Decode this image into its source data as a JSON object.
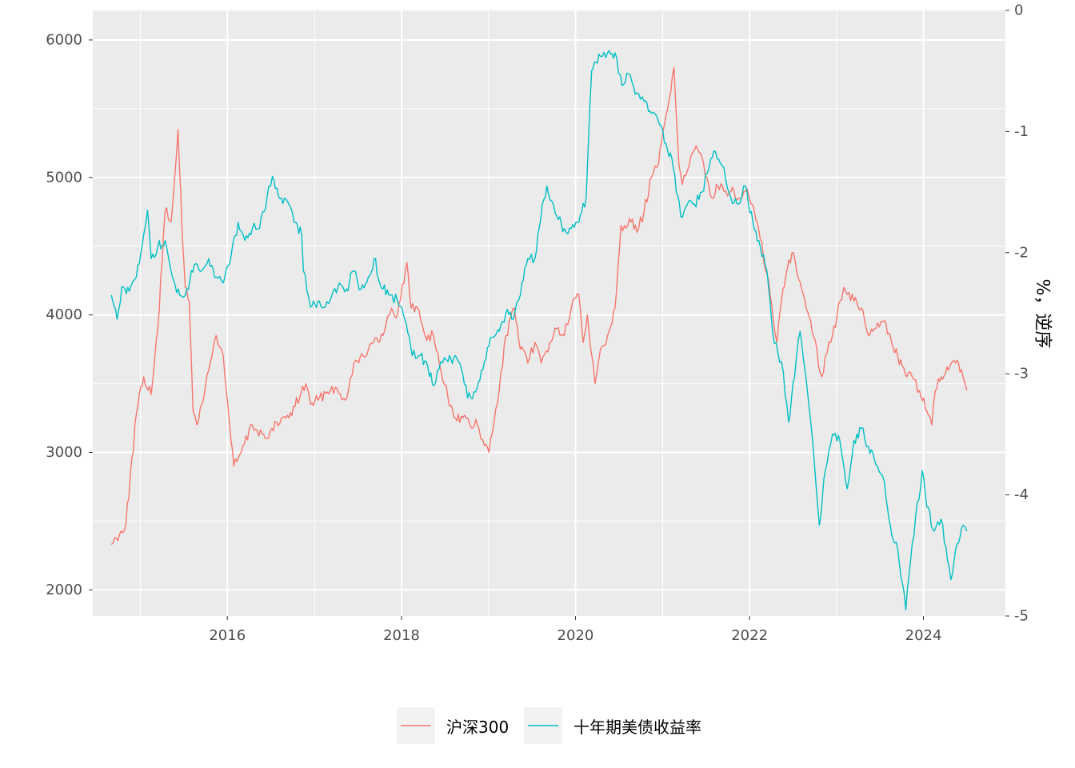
{
  "chart_data": {
    "type": "line",
    "title": "",
    "xlabel": "",
    "ylabel_left": "",
    "ylabel_right": "%，逆序",
    "x_ticks": [
      "2016",
      "2018",
      "2020",
      "2022",
      "2024"
    ],
    "y_left_ticks": [
      "2000",
      "3000",
      "4000",
      "5000",
      "6000"
    ],
    "y_right_ticks": [
      "0",
      "-1",
      "-2",
      "-3",
      "-4",
      "-5"
    ],
    "x_range": [
      "2014-06-15",
      "2024-12-10"
    ],
    "y_left_range": [
      1810,
      6215
    ],
    "y_right_range": [
      -5,
      0
    ],
    "grid": true,
    "legend_position": "bottom",
    "series": [
      {
        "name": "沪深300",
        "color": "#F8766D",
        "axis": "left",
        "x": [
          "2014-09-01",
          "2014-11-01",
          "2014-12-15",
          "2015-01-15",
          "2015-02-15",
          "2015-03-15",
          "2015-04-15",
          "2015-05-10",
          "2015-06-08",
          "2015-06-25",
          "2015-07-08",
          "2015-07-25",
          "2015-08-10",
          "2015-08-26",
          "2015-09-15",
          "2015-10-15",
          "2015-11-15",
          "2015-12-15",
          "2016-01-10",
          "2016-01-28",
          "2016-02-28",
          "2016-04-15",
          "2016-06-15",
          "2016-08-15",
          "2016-09-15",
          "2016-11-25",
          "2016-12-15",
          "2017-01-15",
          "2017-03-15",
          "2017-05-10",
          "2017-06-15",
          "2017-08-15",
          "2017-10-15",
          "2017-11-20",
          "2017-12-15",
          "2018-01-24",
          "2018-02-10",
          "2018-03-10",
          "2018-04-10",
          "2018-05-15",
          "2018-06-15",
          "2018-07-15",
          "2018-08-15",
          "2018-09-15",
          "2018-10-15",
          "2018-11-15",
          "2018-12-15",
          "2019-01-03",
          "2019-02-15",
          "2019-03-15",
          "2019-04-20",
          "2019-05-15",
          "2019-06-15",
          "2019-07-15",
          "2019-08-10",
          "2019-09-15",
          "2019-10-15",
          "2019-11-15",
          "2019-12-15",
          "2020-01-15",
          "2020-02-03",
          "2020-02-20",
          "2020-03-23",
          "2020-04-15",
          "2020-05-15",
          "2020-06-15",
          "2020-07-10",
          "2020-07-25",
          "2020-08-15",
          "2020-09-15",
          "2020-10-15",
          "2020-11-15",
          "2020-12-15",
          "2021-01-15",
          "2021-02-18",
          "2021-03-10",
          "2021-03-25",
          "2021-04-15",
          "2021-05-15",
          "2021-06-15",
          "2021-07-28",
          "2021-08-15",
          "2021-09-15",
          "2021-10-15",
          "2021-11-15",
          "2021-12-15",
          "2022-01-15",
          "2022-02-15",
          "2022-03-15",
          "2022-04-26",
          "2022-05-15",
          "2022-06-15",
          "2022-07-05",
          "2022-08-15",
          "2022-09-15",
          "2022-10-31",
          "2022-11-15",
          "2022-12-15",
          "2023-01-15",
          "2023-01-31",
          "2023-02-15",
          "2023-03-15",
          "2023-04-15",
          "2023-05-15",
          "2023-06-15",
          "2023-07-15",
          "2023-08-15",
          "2023-09-15",
          "2023-10-23",
          "2023-11-15",
          "2023-12-15",
          "2024-01-15",
          "2024-02-05",
          "2024-02-20",
          "2024-03-15",
          "2024-04-15",
          "2024-05-15",
          "2024-06-15",
          "2024-07-01"
        ],
        "values": [
          2330,
          2480,
          3280,
          3550,
          3420,
          3900,
          4760,
          4680,
          5350,
          4600,
          4200,
          4100,
          3300,
          3200,
          3350,
          3600,
          3850,
          3700,
          3200,
          2900,
          3000,
          3200,
          3100,
          3250,
          3250,
          3500,
          3350,
          3380,
          3480,
          3380,
          3650,
          3750,
          3850,
          4050,
          4000,
          4380,
          4050,
          4050,
          3850,
          3850,
          3600,
          3400,
          3250,
          3250,
          3200,
          3200,
          3050,
          3000,
          3450,
          3850,
          4050,
          3750,
          3650,
          3800,
          3650,
          3800,
          3900,
          3850,
          4050,
          4150,
          3800,
          4000,
          3500,
          3750,
          3850,
          4050,
          4650,
          4650,
          4700,
          4600,
          4750,
          5000,
          5100,
          5450,
          5800,
          5100,
          4950,
          5050,
          5200,
          5150,
          4850,
          4950,
          4900,
          4900,
          4850,
          4900,
          4800,
          4550,
          4300,
          3800,
          4100,
          4400,
          4450,
          4150,
          3950,
          3550,
          3700,
          3850,
          4100,
          4200,
          4150,
          4100,
          4050,
          3850,
          3900,
          3950,
          3850,
          3700,
          3550,
          3550,
          3450,
          3300,
          3200,
          3450,
          3550,
          3600,
          3650,
          3550,
          3450
        ]
      },
      {
        "name": "十年期美债收益率",
        "color": "#00BFC4",
        "axis": "right",
        "x": [
          "2014-09-01",
          "2014-09-25",
          "2014-10-15",
          "2014-11-15",
          "2014-12-15",
          "2015-01-15",
          "2015-01-31",
          "2015-02-15",
          "2015-03-15",
          "2015-04-15",
          "2015-05-15",
          "2015-06-15",
          "2015-07-15",
          "2015-08-15",
          "2015-09-15",
          "2015-10-15",
          "2015-11-15",
          "2015-12-15",
          "2016-01-15",
          "2016-02-15",
          "2016-03-15",
          "2016-04-15",
          "2016-05-15",
          "2016-06-15",
          "2016-07-08",
          "2016-08-15",
          "2016-09-15",
          "2016-10-15",
          "2016-11-08",
          "2016-11-15",
          "2016-12-15",
          "2017-01-15",
          "2017-02-15",
          "2017-03-15",
          "2017-04-15",
          "2017-05-15",
          "2017-06-15",
          "2017-07-15",
          "2017-08-15",
          "2017-09-08",
          "2017-10-15",
          "2017-11-15",
          "2017-12-15",
          "2018-01-15",
          "2018-02-15",
          "2018-03-15",
          "2018-04-15",
          "2018-05-17",
          "2018-06-15",
          "2018-07-15",
          "2018-08-15",
          "2018-09-15",
          "2018-10-05",
          "2018-11-08",
          "2018-12-15",
          "2019-01-15",
          "2019-02-15",
          "2019-03-15",
          "2019-04-15",
          "2019-05-15",
          "2019-06-15",
          "2019-07-15",
          "2019-08-15",
          "2019-09-03",
          "2019-10-15",
          "2019-11-15",
          "2019-12-15",
          "2020-01-15",
          "2020-02-15",
          "2020-03-09",
          "2020-04-15",
          "2020-05-15",
          "2020-06-15",
          "2020-07-15",
          "2020-08-04",
          "2020-09-15",
          "2020-10-15",
          "2020-11-15",
          "2020-12-15",
          "2021-01-15",
          "2021-02-15",
          "2021-03-18",
          "2021-04-15",
          "2021-05-15",
          "2021-06-15",
          "2021-07-15",
          "2021-08-04",
          "2021-09-15",
          "2021-10-15",
          "2021-11-15",
          "2021-12-15",
          "2022-01-15",
          "2022-02-15",
          "2022-03-15",
          "2022-04-15",
          "2022-05-15",
          "2022-06-14",
          "2022-07-15",
          "2022-08-01",
          "2022-09-15",
          "2022-10-21",
          "2022-11-15",
          "2022-12-15",
          "2023-01-15",
          "2023-02-15",
          "2023-03-15",
          "2023-04-15",
          "2023-05-15",
          "2023-06-15",
          "2023-07-15",
          "2023-08-15",
          "2023-09-15",
          "2023-10-19",
          "2023-11-15",
          "2023-12-27",
          "2024-01-15",
          "2024-02-15",
          "2024-03-15",
          "2024-04-25",
          "2024-05-15",
          "2024-06-15",
          "2024-07-01"
        ],
        "values": [
          -2.35,
          -2.55,
          -2.28,
          -2.32,
          -2.2,
          -1.85,
          -1.65,
          -2.05,
          -1.95,
          -1.9,
          -2.2,
          -2.35,
          -2.3,
          -2.1,
          -2.15,
          -2.05,
          -2.2,
          -2.25,
          -2.05,
          -1.75,
          -1.9,
          -1.8,
          -1.8,
          -1.55,
          -1.37,
          -1.55,
          -1.6,
          -1.75,
          -1.85,
          -2.15,
          -2.45,
          -2.4,
          -2.45,
          -2.35,
          -2.25,
          -2.3,
          -2.15,
          -2.3,
          -2.2,
          -2.05,
          -2.3,
          -2.35,
          -2.4,
          -2.55,
          -2.85,
          -2.85,
          -2.9,
          -3.1,
          -2.9,
          -2.9,
          -2.85,
          -3.0,
          -3.2,
          -3.15,
          -2.9,
          -2.7,
          -2.65,
          -2.5,
          -2.55,
          -2.35,
          -2.05,
          -2.05,
          -1.6,
          -1.45,
          -1.7,
          -1.8,
          -1.8,
          -1.75,
          -1.55,
          -0.5,
          -0.38,
          -0.35,
          -0.35,
          -0.62,
          -0.52,
          -0.68,
          -0.75,
          -0.85,
          -0.92,
          -1.1,
          -1.3,
          -1.7,
          -1.6,
          -1.6,
          -1.5,
          -1.3,
          -1.16,
          -1.3,
          -1.55,
          -1.6,
          -1.45,
          -1.75,
          -1.95,
          -2.15,
          -2.75,
          -2.9,
          -3.4,
          -2.9,
          -2.65,
          -3.4,
          -4.25,
          -3.8,
          -3.5,
          -3.55,
          -3.95,
          -3.55,
          -3.45,
          -3.6,
          -3.75,
          -3.85,
          -4.25,
          -4.45,
          -4.95,
          -4.4,
          -3.8,
          -4.1,
          -4.3,
          -4.2,
          -4.7,
          -4.45,
          -4.25,
          -4.3
        ]
      }
    ]
  }
}
